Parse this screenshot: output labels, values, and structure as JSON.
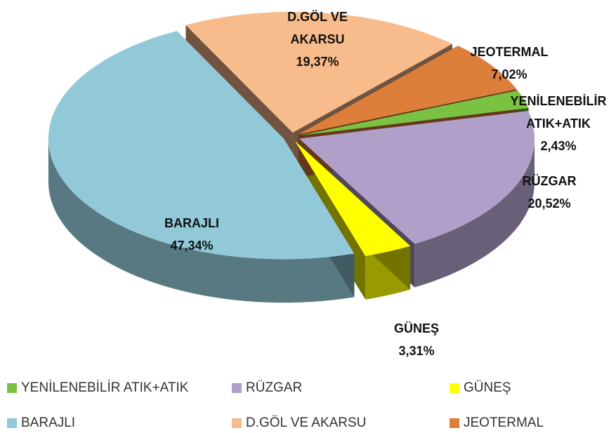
{
  "chart_data": {
    "type": "pie",
    "categories": [
      "YENİLENEBİLİR ATIK+ATIK",
      "RÜZGAR",
      "GÜNEŞ",
      "BARAJLI",
      "D.GÖL VE AKARSU",
      "JEOTERMAL"
    ],
    "values": [
      2.43,
      20.52,
      3.31,
      47.34,
      19.37,
      7.02
    ],
    "value_labels": [
      "2,43%",
      "20,52%",
      "3,31%",
      "47,34%",
      "19,37%",
      "7,02%"
    ],
    "colors": [
      "#7cc242",
      "#b09fc8",
      "#ffff00",
      "#92c9d9",
      "#f8bb8b",
      "#dd7f3a"
    ],
    "legend": "bottom"
  }
}
